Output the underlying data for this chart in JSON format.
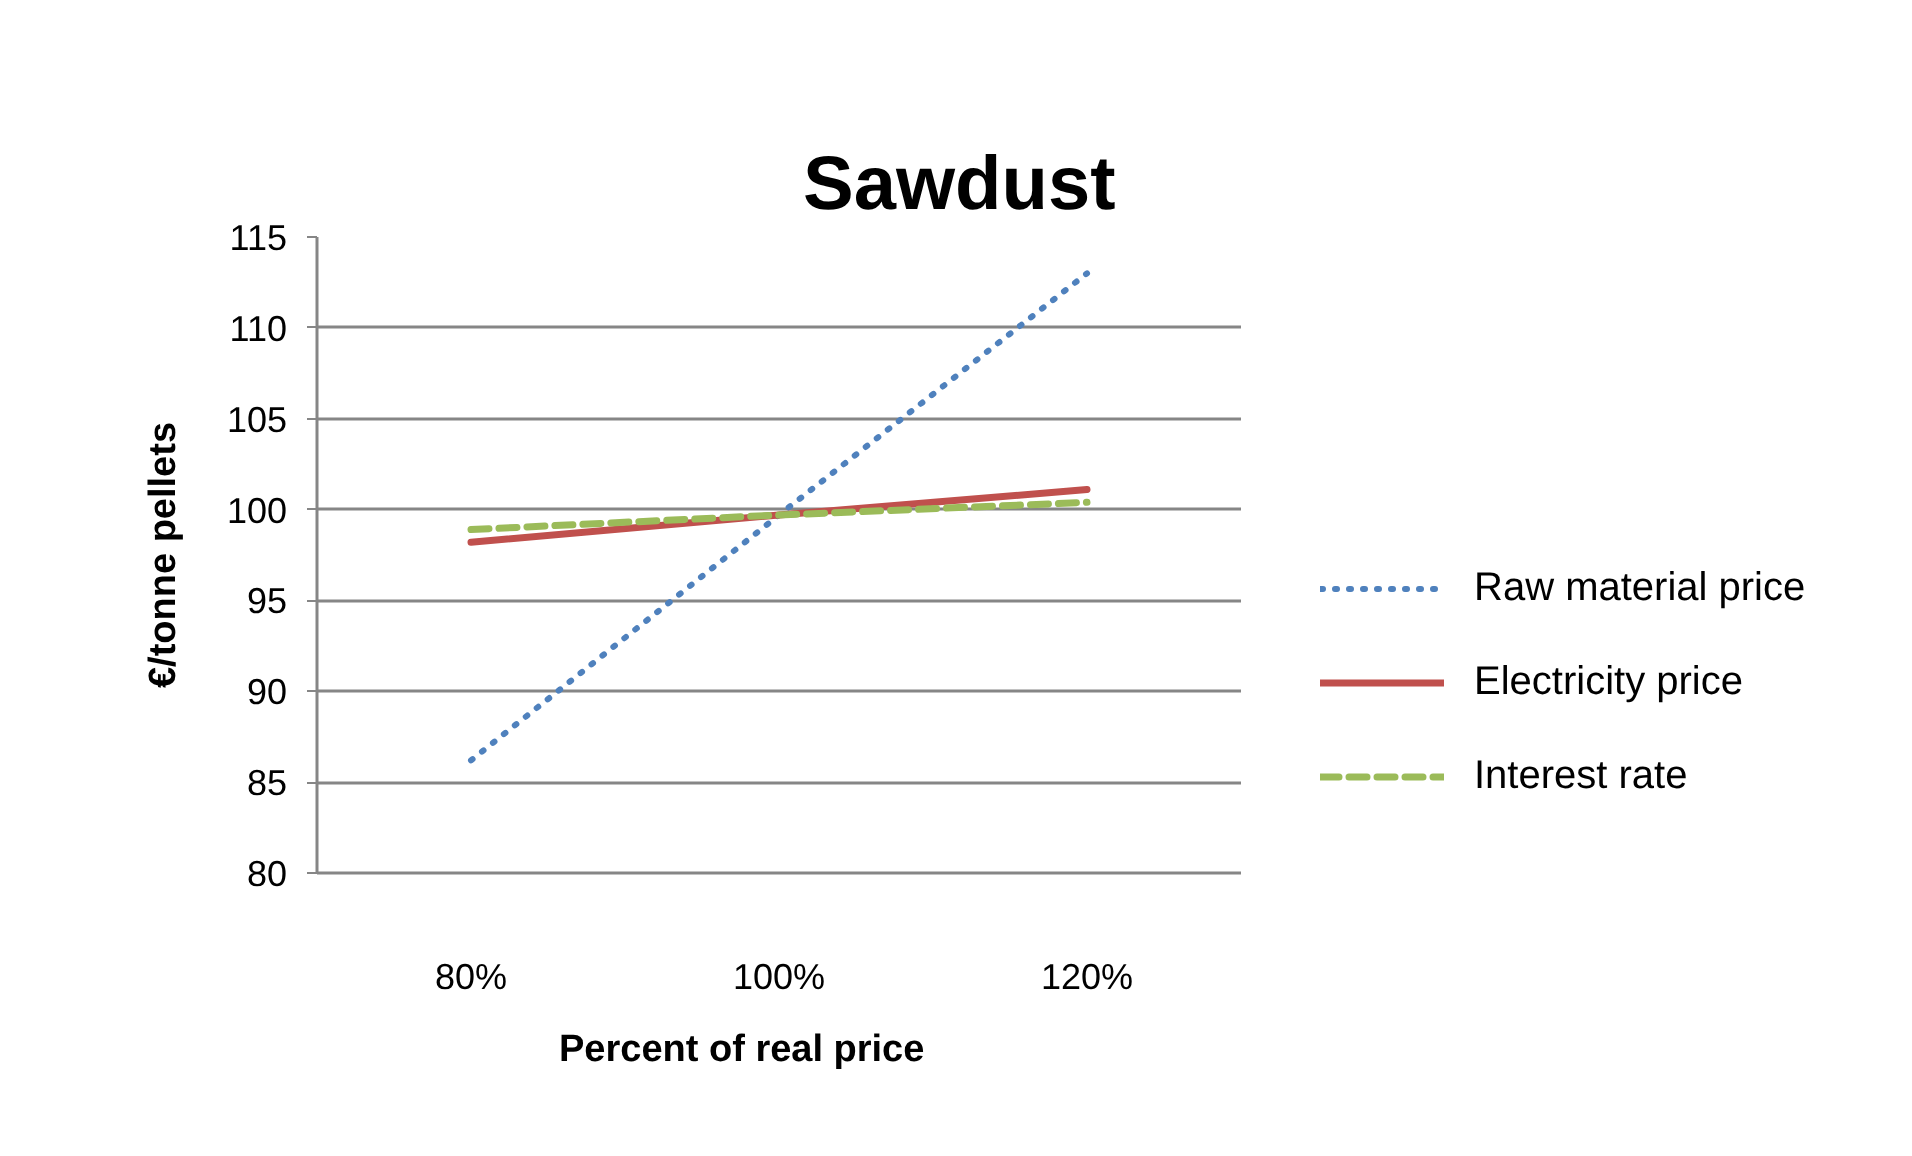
{
  "chart_data": {
    "type": "line",
    "title": "Sawdust",
    "xlabel": "Percent of real price",
    "ylabel": "€/tonne pellets",
    "categories": [
      "80%",
      "100%",
      "120%"
    ],
    "series": [
      {
        "name": "Raw material price",
        "color": "#4f81bd",
        "line_style": "dotted",
        "values": [
          86.2,
          99.7,
          113.0
        ]
      },
      {
        "name": "Electricity price",
        "color": "#c0504d",
        "line_style": "solid",
        "values": [
          98.2,
          99.7,
          101.1
        ]
      },
      {
        "name": "Interest rate",
        "color": "#9bbb59",
        "line_style": "dashed",
        "values": [
          98.9,
          99.7,
          100.4
        ]
      }
    ],
    "ylim": [
      80,
      115
    ],
    "yticks": [
      80,
      85,
      90,
      95,
      100,
      105,
      110,
      115
    ],
    "grid": "y",
    "legend": "right",
    "marker": "none"
  }
}
